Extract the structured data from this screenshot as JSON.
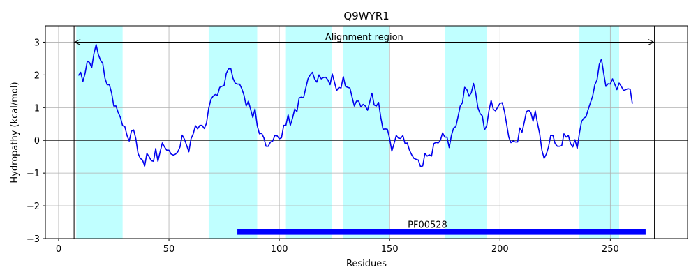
{
  "chart_data": {
    "type": "line",
    "title": "Q9WYR1",
    "xlabel": "Residues",
    "ylabel": "Hydropathy (kcal/mol)",
    "xlim": [
      -6,
      285
    ],
    "ylim": [
      -3,
      3.5
    ],
    "x_ticks": [
      0,
      50,
      100,
      150,
      200,
      250
    ],
    "x_tick_labels": [
      "0",
      "50",
      "100",
      "150",
      "200",
      "250"
    ],
    "y_ticks": [
      -3,
      -2,
      -1,
      0,
      1,
      2,
      3
    ],
    "y_tick_labels": [
      "−3",
      "−2",
      "−1",
      "0",
      "1",
      "2",
      "3"
    ],
    "grid": true,
    "series": [
      {
        "color": "#0000ee",
        "x_start": 9,
        "values": [
          1.98,
          2.08,
          1.8,
          2.05,
          2.42,
          2.38,
          2.22,
          2.65,
          2.93,
          2.62,
          2.45,
          2.35,
          1.9,
          1.7,
          1.7,
          1.45,
          1.05,
          1.05,
          0.85,
          0.7,
          0.45,
          0.42,
          0.15,
          -0.02,
          0.28,
          0.32,
          0.05,
          -0.4,
          -0.55,
          -0.6,
          -0.78,
          -0.4,
          -0.5,
          -0.62,
          -0.64,
          -0.25,
          -0.64,
          -0.35,
          -0.08,
          -0.2,
          -0.3,
          -0.3,
          -0.42,
          -0.45,
          -0.42,
          -0.35,
          -0.2,
          0.16,
          0.04,
          -0.15,
          -0.35,
          0.05,
          0.2,
          0.45,
          0.35,
          0.46,
          0.46,
          0.36,
          0.52,
          0.98,
          1.25,
          1.35,
          1.4,
          1.38,
          1.62,
          1.65,
          1.68,
          2.05,
          2.18,
          2.2,
          1.9,
          1.75,
          1.72,
          1.72,
          1.58,
          1.38,
          1.05,
          1.2,
          0.95,
          0.7,
          0.96,
          0.45,
          0.2,
          0.22,
          0.08,
          -0.18,
          -0.18,
          -0.05,
          -0.02,
          0.15,
          0.14,
          0.05,
          0.08,
          0.46,
          0.46,
          0.78,
          0.46,
          0.68,
          0.96,
          0.88,
          1.3,
          1.32,
          1.3,
          1.6,
          1.88,
          2.0,
          2.08,
          1.88,
          1.78,
          2.0,
          1.88,
          1.92,
          1.93,
          1.85,
          1.7,
          2.03,
          1.78,
          1.52,
          1.62,
          1.6,
          1.95,
          1.65,
          1.62,
          1.6,
          1.32,
          1.05,
          1.2,
          1.2,
          1.02,
          1.1,
          1.05,
          0.92,
          1.18,
          1.44,
          1.08,
          1.05,
          1.16,
          0.7,
          0.34,
          0.35,
          0.34,
          0.06,
          -0.33,
          -0.1,
          0.15,
          0.07,
          0.06,
          0.15,
          -0.1,
          -0.08,
          -0.3,
          -0.44,
          -0.55,
          -0.58,
          -0.6,
          -0.8,
          -0.78,
          -0.4,
          -0.48,
          -0.44,
          -0.48,
          -0.1,
          -0.06,
          -0.08,
          0.0,
          0.23,
          0.1,
          0.1,
          -0.22,
          0.15,
          0.38,
          0.42,
          0.72,
          1.05,
          1.15,
          1.62,
          1.55,
          1.35,
          1.45,
          1.74,
          1.45,
          1.0,
          0.82,
          0.75,
          0.32,
          0.45,
          0.9,
          1.22,
          0.95,
          0.9,
          1.02,
          1.13,
          1.15,
          0.9,
          0.5,
          0.1,
          -0.07,
          -0.02,
          -0.05,
          -0.05,
          0.38,
          0.25,
          0.55,
          0.88,
          0.92,
          0.85,
          0.58,
          0.9,
          0.52,
          0.2,
          -0.3,
          -0.55,
          -0.42,
          -0.2,
          0.15,
          0.15,
          -0.1,
          -0.18,
          -0.18,
          -0.16,
          0.2,
          0.1,
          0.15,
          -0.1,
          -0.2,
          0.02,
          -0.25,
          0.22,
          0.58,
          0.68,
          0.72,
          0.95,
          1.15,
          1.35,
          1.7,
          1.85,
          2.32,
          2.48,
          2.05,
          1.65,
          1.73,
          1.72,
          1.88,
          1.72,
          1.55,
          1.75,
          1.65,
          1.52,
          1.55,
          1.58,
          1.56,
          1.12
        ]
      }
    ],
    "hydrophobic_regions": [
      [
        8,
        29
      ],
      [
        68,
        90
      ],
      [
        103,
        124
      ],
      [
        129,
        150
      ],
      [
        175,
        194
      ],
      [
        236,
        254
      ]
    ],
    "region_color": "#c0ffff",
    "alignment_region": {
      "label": "Alignment region",
      "start": 7,
      "end": 270,
      "y": 3.0
    },
    "domain_bar": {
      "label": "PF00528",
      "start": 81,
      "end": 266,
      "y": -2.8,
      "color": "#0000ff"
    }
  }
}
